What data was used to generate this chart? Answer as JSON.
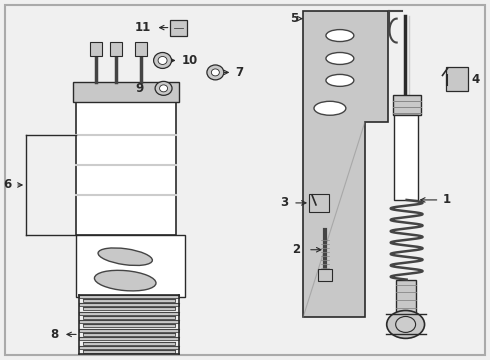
{
  "bg_color": "#f0f0f0",
  "border_color": "#aaaaaa",
  "lc": "#2a2a2a",
  "dgray": "#444444",
  "mgray": "#888888",
  "lgray": "#cccccc",
  "shade": "#c8c8c8",
  "white": "#ffffff",
  "label_fs": 8.5
}
